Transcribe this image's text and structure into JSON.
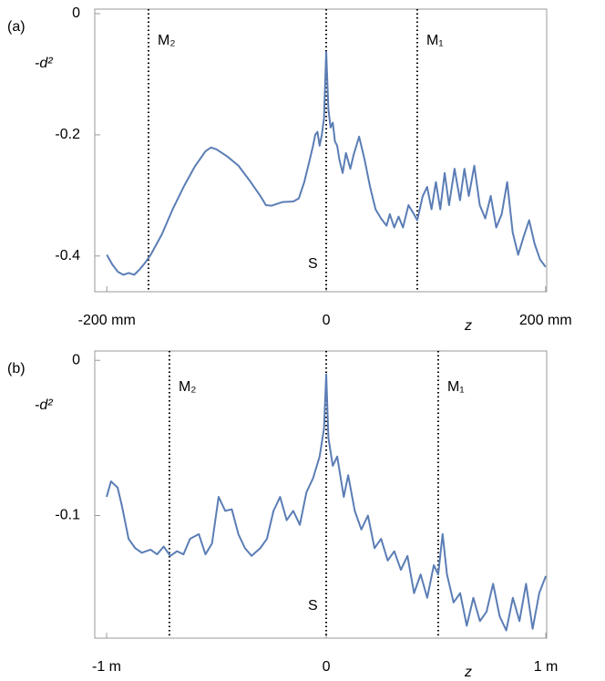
{
  "chart_data": [
    {
      "type": "line",
      "panel_label": "(a)",
      "xlabel": "z",
      "ylabel": "-d²",
      "xlim": [
        -211,
        201
      ],
      "ylim": [
        -0.459,
        0.0075
      ],
      "xticks": [
        {
          "value": -200,
          "label": "-200 mm"
        },
        0,
        {
          "value": 200,
          "label": "200 mm"
        }
      ],
      "yticks": [
        0,
        -0.2,
        -0.4
      ],
      "vlines": [
        {
          "x": -162,
          "label": "M₂"
        },
        {
          "x": 0,
          "label": "S"
        },
        {
          "x": 83,
          "label": "M₁"
        }
      ],
      "series": [
        {
          "color": "#5b7db5",
          "x": [
            -200,
            -195,
            -190,
            -185,
            -180,
            -175,
            -170,
            -165,
            -160,
            -150,
            -140,
            -130,
            -120,
            -110,
            -105,
            -100,
            -90,
            -80,
            -70,
            -60,
            -55,
            -50,
            -40,
            -30,
            -25,
            -20,
            -15,
            -12,
            -10,
            -8,
            -6,
            -4,
            -2,
            0,
            2,
            4,
            6,
            8,
            10,
            12,
            15,
            18,
            22,
            25,
            30,
            35,
            40,
            45,
            50,
            55,
            58,
            62,
            66,
            70,
            75,
            80,
            83,
            88,
            92,
            96,
            100,
            104,
            108,
            112,
            117,
            122,
            126,
            130,
            135,
            140,
            145,
            150,
            155,
            160,
            165,
            170,
            175,
            180,
            185,
            190,
            195,
            200
          ],
          "values": [
            -0.398,
            -0.414,
            -0.426,
            -0.431,
            -0.428,
            -0.431,
            -0.422,
            -0.411,
            -0.398,
            -0.365,
            -0.323,
            -0.286,
            -0.253,
            -0.227,
            -0.221,
            -0.224,
            -0.236,
            -0.251,
            -0.275,
            -0.301,
            -0.316,
            -0.317,
            -0.311,
            -0.31,
            -0.305,
            -0.278,
            -0.241,
            -0.218,
            -0.2,
            -0.195,
            -0.218,
            -0.2,
            -0.173,
            -0.063,
            -0.158,
            -0.188,
            -0.18,
            -0.211,
            -0.218,
            -0.241,
            -0.263,
            -0.23,
            -0.256,
            -0.233,
            -0.203,
            -0.241,
            -0.286,
            -0.323,
            -0.338,
            -0.35,
            -0.331,
            -0.353,
            -0.335,
            -0.353,
            -0.316,
            -0.331,
            -0.341,
            -0.301,
            -0.286,
            -0.323,
            -0.278,
            -0.323,
            -0.263,
            -0.316,
            -0.256,
            -0.308,
            -0.256,
            -0.301,
            -0.251,
            -0.316,
            -0.338,
            -0.301,
            -0.353,
            -0.331,
            -0.278,
            -0.361,
            -0.398,
            -0.368,
            -0.341,
            -0.38,
            -0.406,
            -0.418
          ]
        }
      ]
    },
    {
      "type": "line",
      "panel_label": "(b)",
      "xlabel": "z",
      "ylabel": "-d²",
      "xlim": [
        -1.054,
        1.004
      ],
      "ylim": [
        -0.179,
        0.006
      ],
      "xticks": [
        {
          "value": -1,
          "label": "-1 m"
        },
        0,
        {
          "value": 1,
          "label": "1 m"
        }
      ],
      "yticks": [
        0,
        -0.1
      ],
      "vlines": [
        {
          "x": -0.714,
          "label": "M₂"
        },
        {
          "x": 0,
          "label": "S"
        },
        {
          "x": 0.51,
          "label": "M₁"
        }
      ],
      "series": [
        {
          "color": "#5b7db5",
          "x": [
            -1,
            -0.98,
            -0.95,
            -0.93,
            -0.9,
            -0.87,
            -0.84,
            -0.8,
            -0.77,
            -0.74,
            -0.71,
            -0.68,
            -0.65,
            -0.62,
            -0.58,
            -0.55,
            -0.52,
            -0.49,
            -0.46,
            -0.43,
            -0.4,
            -0.37,
            -0.34,
            -0.3,
            -0.27,
            -0.24,
            -0.21,
            -0.18,
            -0.15,
            -0.12,
            -0.09,
            -0.06,
            -0.03,
            -0.01,
            0,
            0.01,
            0.03,
            0.05,
            0.08,
            0.1,
            0.13,
            0.16,
            0.19,
            0.22,
            0.25,
            0.28,
            0.31,
            0.34,
            0.37,
            0.4,
            0.43,
            0.46,
            0.49,
            0.51,
            0.53,
            0.55,
            0.58,
            0.61,
            0.64,
            0.67,
            0.7,
            0.73,
            0.76,
            0.79,
            0.82,
            0.85,
            0.88,
            0.91,
            0.94,
            0.97,
            1
          ],
          "values": [
            -0.088,
            -0.078,
            -0.082,
            -0.094,
            -0.115,
            -0.121,
            -0.124,
            -0.122,
            -0.125,
            -0.12,
            -0.126,
            -0.123,
            -0.125,
            -0.115,
            -0.112,
            -0.125,
            -0.118,
            -0.088,
            -0.097,
            -0.096,
            -0.112,
            -0.121,
            -0.126,
            -0.121,
            -0.115,
            -0.097,
            -0.088,
            -0.103,
            -0.097,
            -0.106,
            -0.085,
            -0.076,
            -0.062,
            -0.044,
            -0.009,
            -0.05,
            -0.068,
            -0.062,
            -0.088,
            -0.074,
            -0.097,
            -0.109,
            -0.1,
            -0.121,
            -0.115,
            -0.129,
            -0.123,
            -0.135,
            -0.126,
            -0.15,
            -0.138,
            -0.153,
            -0.132,
            -0.138,
            -0.112,
            -0.138,
            -0.156,
            -0.15,
            -0.171,
            -0.153,
            -0.168,
            -0.162,
            -0.144,
            -0.165,
            -0.174,
            -0.153,
            -0.168,
            -0.144,
            -0.173,
            -0.15,
            -0.139
          ]
        }
      ]
    }
  ]
}
